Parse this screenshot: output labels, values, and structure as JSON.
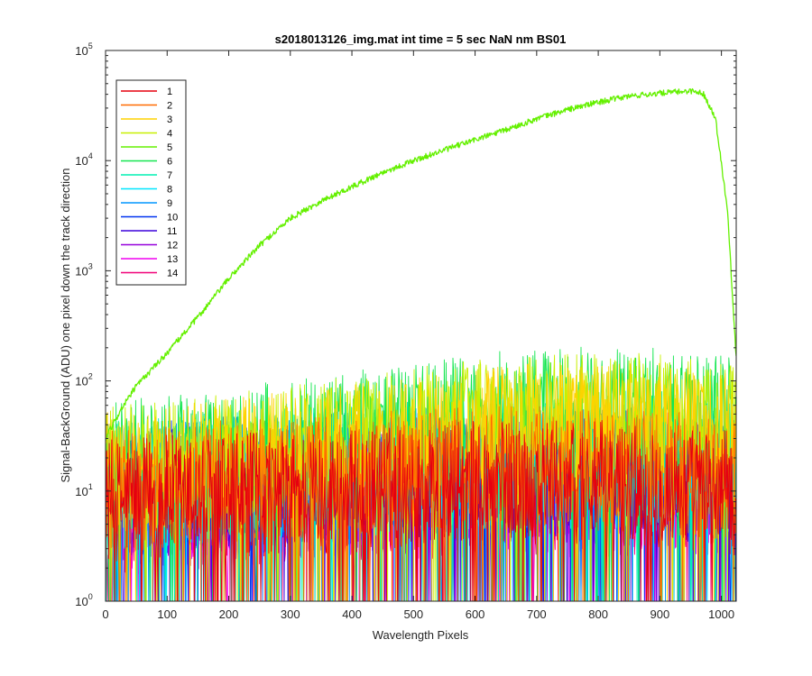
{
  "chart_data": {
    "type": "line",
    "title": "s2018013126_img.mat int time = 5 sec  NaN nm BS01",
    "xlabel": "Wavelength Pixels",
    "ylabel": "Signal-BackGround (ADU) one pixel down the track direction",
    "xlim": [
      0,
      1024
    ],
    "ylim": [
      1,
      100000
    ],
    "yscale": "log",
    "grid": false,
    "legend_position": "top-left",
    "x_ticks": [
      "0",
      "100",
      "200",
      "300",
      "400",
      "500",
      "600",
      "700",
      "800",
      "900",
      "1000"
    ],
    "x_tick_values": [
      0,
      100,
      200,
      300,
      400,
      500,
      600,
      700,
      800,
      900,
      1000
    ],
    "y_ticks": [
      {
        "base": "10",
        "exp": "0",
        "value": 1
      },
      {
        "base": "10",
        "exp": "1",
        "value": 10
      },
      {
        "base": "10",
        "exp": "2",
        "value": 100
      },
      {
        "base": "10",
        "exp": "3",
        "value": 1000
      },
      {
        "base": "10",
        "exp": "4",
        "value": 10000
      },
      {
        "base": "10",
        "exp": "5",
        "value": 100000
      }
    ],
    "series": [
      {
        "name": "1",
        "color": "#e6000f",
        "x": [
          0,
          100,
          200,
          300,
          400,
          500,
          600,
          700,
          800,
          900,
          1000,
          1024
        ],
        "y": [
          8,
          9,
          9,
          10,
          10,
          11,
          12,
          12,
          12,
          11,
          10,
          9
        ]
      },
      {
        "name": "2",
        "color": "#ff6a00",
        "x": [
          0,
          100,
          200,
          300,
          400,
          500,
          600,
          700,
          800,
          900,
          1000,
          1024
        ],
        "y": [
          10,
          11,
          12,
          13,
          14,
          15,
          16,
          16,
          16,
          15,
          13,
          12
        ]
      },
      {
        "name": "3",
        "color": "#ffd200",
        "x": [
          0,
          100,
          200,
          300,
          400,
          500,
          600,
          700,
          800,
          900,
          1000,
          1024
        ],
        "y": [
          14,
          16,
          19,
          22,
          25,
          30,
          35,
          40,
          42,
          40,
          35,
          30
        ]
      },
      {
        "name": "4",
        "color": "#c8f000",
        "x": [
          0,
          100,
          200,
          300,
          400,
          500,
          600,
          700,
          800,
          900,
          1000,
          1024
        ],
        "y": [
          16,
          18,
          21,
          25,
          30,
          36,
          42,
          48,
          50,
          48,
          42,
          38
        ]
      },
      {
        "name": "5",
        "color": "#64f000",
        "x": [
          0,
          25,
          50,
          100,
          150,
          200,
          250,
          300,
          350,
          400,
          450,
          500,
          550,
          600,
          650,
          700,
          750,
          800,
          850,
          900,
          950,
          970,
          990,
          1010,
          1024
        ],
        "y": [
          30,
          55,
          90,
          180,
          380,
          850,
          1700,
          3000,
          4300,
          5800,
          7800,
          10000,
          12500,
          15500,
          19000,
          24000,
          29000,
          34000,
          38500,
          41000,
          43000,
          41000,
          25000,
          3500,
          160
        ]
      },
      {
        "name": "6",
        "color": "#14e650",
        "x": [
          0,
          100,
          200,
          300,
          400,
          500,
          600,
          700,
          800,
          900,
          1000,
          1024
        ],
        "y": [
          18,
          20,
          24,
          28,
          34,
          40,
          48,
          55,
          58,
          55,
          48,
          44
        ]
      },
      {
        "name": "7",
        "color": "#00f0b4",
        "x": [
          0,
          100,
          200,
          300,
          400,
          500,
          600,
          700,
          800,
          900,
          1000,
          1024
        ],
        "y": [
          12,
          13,
          15,
          17,
          19,
          21,
          23,
          24,
          24,
          23,
          21,
          20
        ]
      },
      {
        "name": "8",
        "color": "#00e6ff",
        "x": [
          0,
          100,
          200,
          300,
          400,
          500,
          600,
          700,
          800,
          900,
          1000,
          1024
        ],
        "y": [
          10,
          11,
          12,
          13,
          14,
          15,
          16,
          16,
          16,
          15,
          14,
          13
        ]
      },
      {
        "name": "9",
        "color": "#0096ff",
        "x": [
          0,
          100,
          200,
          300,
          400,
          500,
          600,
          700,
          800,
          900,
          1000,
          1024
        ],
        "y": [
          11,
          12,
          13,
          14,
          15,
          16,
          17,
          17,
          17,
          16,
          15,
          14
        ]
      },
      {
        "name": "10",
        "color": "#0032f0",
        "x": [
          0,
          100,
          200,
          300,
          400,
          500,
          600,
          700,
          800,
          900,
          1000,
          1024
        ],
        "y": [
          11,
          12,
          13,
          14,
          15,
          16,
          17,
          17,
          17,
          16,
          15,
          14
        ]
      },
      {
        "name": "11",
        "color": "#3c00dc",
        "x": [
          0,
          100,
          200,
          300,
          400,
          500,
          600,
          700,
          800,
          900,
          1000,
          1024
        ],
        "y": [
          9,
          10,
          11,
          12,
          12,
          13,
          13,
          14,
          14,
          13,
          12,
          12
        ]
      },
      {
        "name": "12",
        "color": "#9600dc",
        "x": [
          0,
          100,
          200,
          300,
          400,
          500,
          600,
          700,
          800,
          900,
          1000,
          1024
        ],
        "y": [
          8,
          9,
          10,
          10,
          11,
          11,
          12,
          12,
          12,
          11,
          11,
          10
        ]
      },
      {
        "name": "13",
        "color": "#f000f0",
        "x": [
          0,
          100,
          200,
          300,
          400,
          500,
          600,
          700,
          800,
          900,
          1000,
          1024
        ],
        "y": [
          7,
          8,
          8,
          9,
          9,
          10,
          10,
          10,
          10,
          10,
          9,
          9
        ]
      },
      {
        "name": "14",
        "color": "#f00078",
        "x": [
          0,
          100,
          200,
          300,
          400,
          500,
          600,
          700,
          800,
          900,
          1000,
          1024
        ],
        "y": [
          6,
          7,
          7,
          8,
          8,
          8,
          9,
          9,
          9,
          8,
          8,
          8
        ]
      }
    ]
  }
}
